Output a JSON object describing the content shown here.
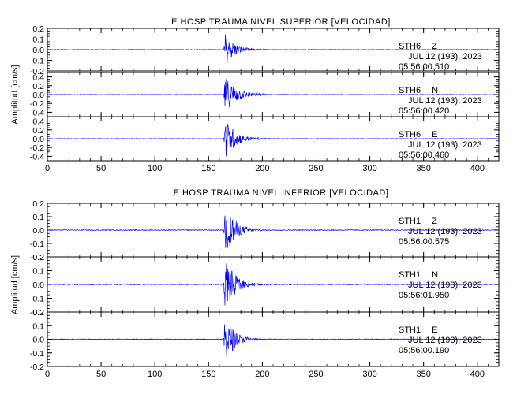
{
  "chart_data": [
    {
      "type": "line",
      "title": "E HOSP TRAUMA NIVEL SUPERIOR [VELOCIDAD]",
      "ylabel": "Amplitud [cm/s]",
      "xlabel": "",
      "xlim": [
        0,
        420
      ],
      "xticks": [
        0,
        50,
        100,
        150,
        200,
        250,
        300,
        350,
        400
      ],
      "grid": false,
      "line_color": "#0000ff",
      "panels": [
        {
          "station": "STH6",
          "component": "Z",
          "date_text": "JUL 12 (193), 2023",
          "time_text": "05:56:00.510",
          "ylim": [
            -0.2,
            0.2
          ],
          "yticks": [
            "0.2",
            "0.1",
            "0.0",
            "-0.1",
            "-0.2"
          ],
          "yticks_val": [
            0.2,
            0.1,
            0.0,
            -0.1,
            -0.2
          ],
          "onset_s": 164,
          "peak_amplitude": 0.16,
          "decay_s": 9,
          "noise_amplitude": 0.003
        },
        {
          "station": "STH6",
          "component": "N",
          "date_text": "JUL 12 (193), 2023",
          "time_text": "05:56:00.420",
          "ylim": [
            -0.5,
            0.5
          ],
          "yticks": [
            "0.4",
            "0.2",
            "0.0",
            "-0.2",
            "-0.4"
          ],
          "yticks_val": [
            0.4,
            0.2,
            0.0,
            -0.2,
            -0.4
          ],
          "onset_s": 164,
          "peak_amplitude": 0.42,
          "decay_s": 11,
          "noise_amplitude": 0.006
        },
        {
          "station": "STH6",
          "component": "E",
          "date_text": "JUL 12 (193), 2023",
          "time_text": "05:56:00.460",
          "ylim": [
            -0.5,
            0.5
          ],
          "yticks": [
            "0.4",
            "0.2",
            "0.0",
            "-0.2",
            "-0.4"
          ],
          "yticks_val": [
            0.4,
            0.2,
            0.0,
            -0.2,
            -0.4
          ],
          "onset_s": 164,
          "peak_amplitude": 0.46,
          "decay_s": 10,
          "noise_amplitude": 0.006
        }
      ]
    },
    {
      "type": "line",
      "title": "E HOSP TRAUMA NIVEL INFERIOR [VELOCIDAD]",
      "ylabel": "Amplitud [cm/s]",
      "xlabel": "",
      "xlim": [
        0,
        420
      ],
      "xticks": [
        0,
        50,
        100,
        150,
        200,
        250,
        300,
        350,
        400
      ],
      "grid": false,
      "line_color": "#0000ff",
      "panels": [
        {
          "station": "STH1",
          "component": "Z",
          "date_text": "JUL 12 (193), 2023",
          "time_text": "05:56:00.575",
          "ylim": [
            -0.2,
            0.2
          ],
          "yticks": [
            "0.2",
            "0.1",
            "0.0",
            "-0.1",
            "-0.2"
          ],
          "yticks_val": [
            0.2,
            0.1,
            0.0,
            -0.1,
            -0.2
          ],
          "onset_s": 164,
          "peak_amplitude": 0.2,
          "decay_s": 9,
          "noise_amplitude": 0.003
        },
        {
          "station": "STH1",
          "component": "N",
          "date_text": "JUL 12 (193), 2023",
          "time_text": "05:56:01.950",
          "ylim": [
            -0.2,
            0.2
          ],
          "yticks": [
            "0.2",
            "0.1",
            "0.0",
            "-0.1",
            "-0.2"
          ],
          "yticks_val": [
            0.2,
            0.1,
            0.0,
            -0.1,
            -0.2
          ],
          "onset_s": 164,
          "peak_amplitude": 0.2,
          "decay_s": 9,
          "noise_amplitude": 0.003
        },
        {
          "station": "STH1",
          "component": "E",
          "date_text": "JUL 12 (193), 2023",
          "time_text": "05:56:00.190",
          "ylim": [
            -0.2,
            0.2
          ],
          "yticks": [
            "0.2",
            "0.1",
            "0.0",
            "-0.1",
            "-0.2"
          ],
          "yticks_val": [
            0.2,
            0.1,
            0.0,
            -0.1,
            -0.2
          ],
          "onset_s": 164,
          "peak_amplitude": 0.2,
          "decay_s": 8,
          "noise_amplitude": 0.003
        }
      ]
    }
  ]
}
